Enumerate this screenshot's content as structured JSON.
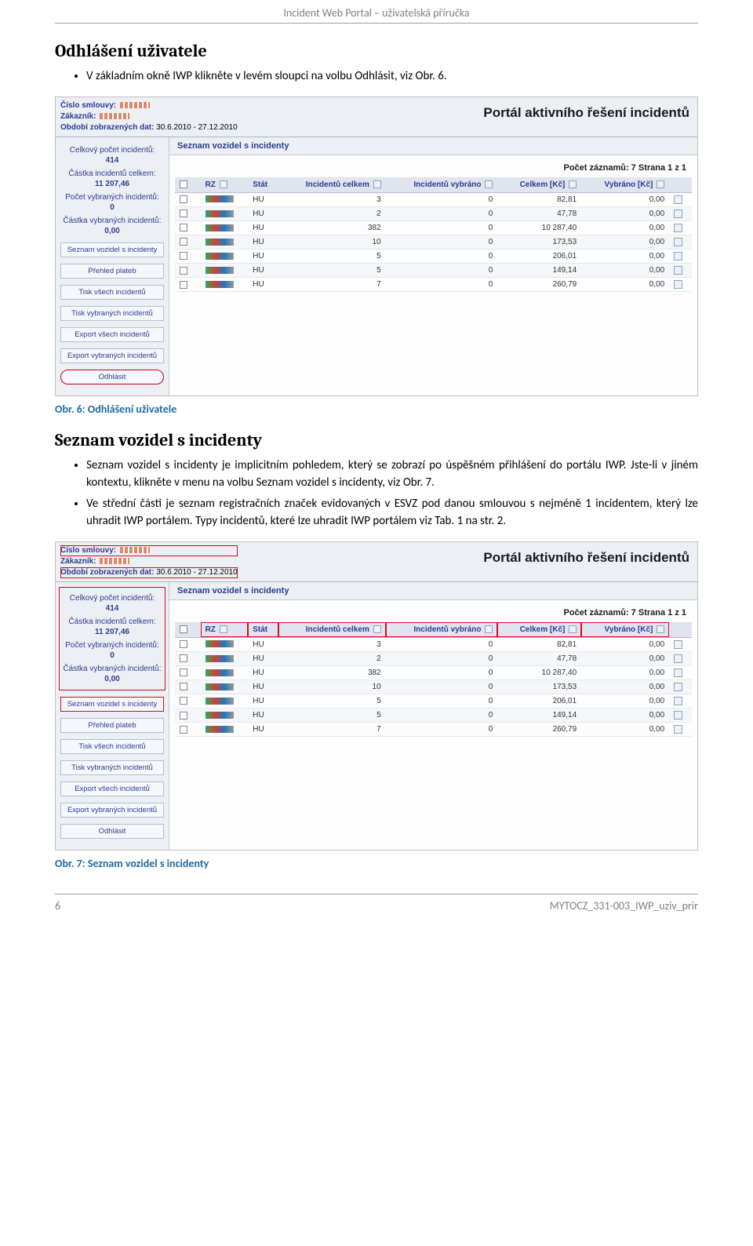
{
  "doc": {
    "header": "Incident Web Portal – uživatelská příručka",
    "h1": "Odhlášení uživatele",
    "bullet_a": "V základním okně IWP klikněte v levém sloupci na volbu Odhlásit, viz Obr. 6.",
    "fig6": "Obr. 6: Odhlášení uživatele",
    "h2": "Seznam vozidel s incidenty",
    "bullets_b": [
      "Seznam vozidel s incidenty je implicitním pohledem, který se zobrazí po úspěšném přihlášení do portálu IWP. Jste-li v jiném kontextu, klikněte v menu na volbu Seznam vozidel s incidenty, viz Obr. 7.",
      "Ve střední části je seznam registračních značek evidovaných v ESVZ pod danou smlouvou s nejméně 1 incidentem, který lze uhradit IWP portálem. Typy incidentů, které lze uhradit IWP portálem viz Tab. 1 na str. 2."
    ],
    "fig7": "Obr. 7: Seznam vozidel s incidenty",
    "footer_page": "6",
    "footer_code": "MYTOCZ_331-003_IWP_uziv_prir"
  },
  "ss": {
    "hdr_contract_lbl": "Číslo smlouvy:",
    "hdr_customer_lbl": "Zákazník:",
    "hdr_period_lbl": "Období zobrazených dat:",
    "hdr_period_val": "30.6.2010 - 27.12.2010",
    "hdr_title": "Portál aktivního řešení incidentů",
    "side_stats": [
      {
        "lbl": "Celkový počet incidentů:",
        "n": "414"
      },
      {
        "lbl": "Částka incidentů celkem:",
        "n": "11 207,46"
      },
      {
        "lbl": "Počet vybraných incidentů:",
        "n": "0"
      },
      {
        "lbl": "Částka vybraných incidentů:",
        "n": "0,00"
      }
    ],
    "side_menu": [
      "Seznam vozidel s incidenty",
      "Přehled plateb",
      "Tisk všech incidentů",
      "Tisk vybraných incidentů",
      "Export všech incidentů",
      "Export vybraných incidentů",
      "Odhlásit"
    ],
    "main_title": "Seznam vozidel s incidenty",
    "count_line": "Počet záznamů: 7 Strana 1 z 1",
    "columns": [
      "RZ",
      "Stát",
      "Incidentů celkem",
      "Incidentů vybráno",
      "Celkem [Kč]",
      "Vybráno [Kč]"
    ],
    "rows": [
      {
        "stat": "HU",
        "ic": "3",
        "iv": "0",
        "ck": "82,81",
        "vk": "0,00"
      },
      {
        "stat": "HU",
        "ic": "2",
        "iv": "0",
        "ck": "47,78",
        "vk": "0,00"
      },
      {
        "stat": "HU",
        "ic": "382",
        "iv": "0",
        "ck": "10 287,40",
        "vk": "0,00"
      },
      {
        "stat": "HU",
        "ic": "10",
        "iv": "0",
        "ck": "173,53",
        "vk": "0,00"
      },
      {
        "stat": "HU",
        "ic": "5",
        "iv": "0",
        "ck": "206,01",
        "vk": "0,00"
      },
      {
        "stat": "HU",
        "ic": "5",
        "iv": "0",
        "ck": "149,14",
        "vk": "0,00"
      },
      {
        "stat": "HU",
        "ic": "7",
        "iv": "0",
        "ck": "260,79",
        "vk": "0,00"
      }
    ]
  }
}
